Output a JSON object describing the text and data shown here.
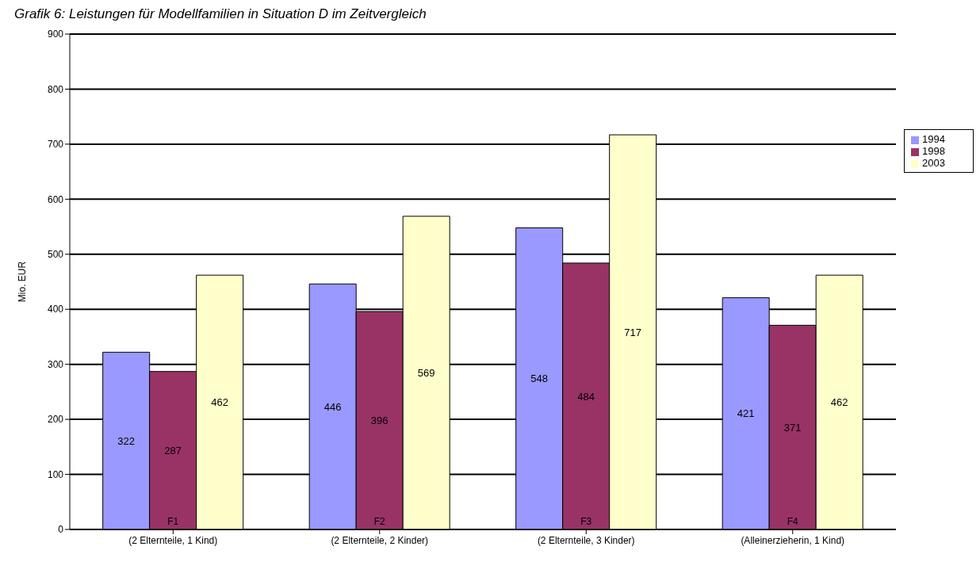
{
  "chart_data": {
    "type": "bar",
    "title": "Grafik 6: Leistungen für Modellfamilien in Situation D im Zeitvergleich",
    "ylabel": "Mio. EUR",
    "categories": [
      "F1 (2 Elternteile, 1 Kind)",
      "F2 (2 Elternteile, 2 Kinder)",
      "F3 (2 Elternteile, 3 Kinder)",
      "F4 (Alleinerzieherin, 1 Kind)"
    ],
    "series": [
      {
        "name": "1994",
        "color": "#9999ff",
        "values": [
          322,
          446,
          548,
          421
        ]
      },
      {
        "name": "1998",
        "color": "#993366",
        "values": [
          287,
          396,
          484,
          371
        ]
      },
      {
        "name": "2003",
        "color": "#ffffcc",
        "values": [
          462,
          569,
          717,
          462
        ]
      }
    ],
    "ylim": [
      0,
      900
    ],
    "yticks": [
      0,
      100,
      200,
      300,
      400,
      500,
      600,
      700,
      800,
      900
    ],
    "grid": "y",
    "legend": "top right",
    "data_labels": true
  }
}
